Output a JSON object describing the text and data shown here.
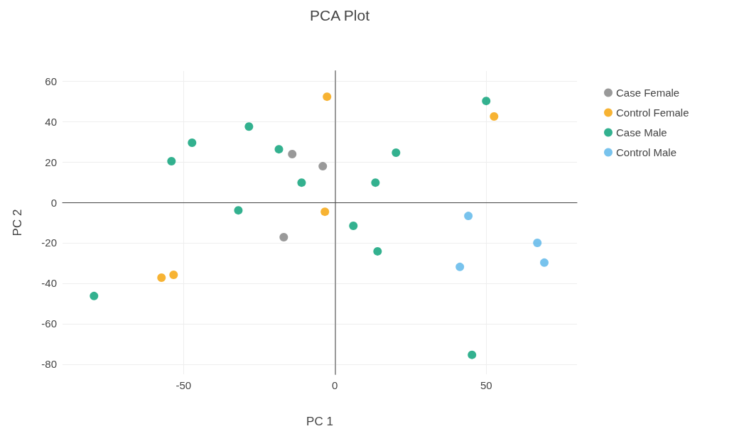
{
  "chart_data": {
    "type": "scatter",
    "title": "PCA Plot",
    "xlabel": "PC 1",
    "ylabel": "PC 2",
    "xlim": [
      -90,
      80
    ],
    "xticks": [
      -50,
      0,
      50
    ],
    "ylim": [
      -85,
      65
    ],
    "yticks": [
      -80,
      -60,
      -40,
      -20,
      0,
      20,
      40,
      60
    ],
    "grid": true,
    "legend": "top right",
    "marker": "circle",
    "series": [
      {
        "name": "Case Female",
        "color": "#7f7f7f",
        "x": [
          -14.1,
          -4.0,
          -16.9
        ],
        "values": [
          23.9,
          17.9,
          -17.2
        ]
      },
      {
        "name": "Control Female",
        "color": "#f5a000",
        "x": [
          -2.6,
          52.6,
          -3.3,
          -57.3,
          -53.3
        ],
        "values": [
          52.3,
          42.5,
          -4.6,
          -37.2,
          -35.8
        ]
      },
      {
        "name": "Case Male",
        "color": "#009e73",
        "x": [
          50,
          -28.4,
          -47.2,
          -54,
          -18.5,
          -11,
          20.2,
          13.4,
          -31.9,
          6.1,
          14.1,
          -79.6,
          45.3
        ],
        "values": [
          50.2,
          37.5,
          29.5,
          20.4,
          26.3,
          9.8,
          24.6,
          9.8,
          -3.9,
          -11.6,
          -24.2,
          -46.3,
          -75.4
        ]
      },
      {
        "name": "Control Male",
        "color": "#56b4e9",
        "x": [
          44.1,
          66.9,
          69.2,
          41.3
        ],
        "values": [
          -6.7,
          -20,
          -29.8,
          -31.9
        ]
      }
    ]
  }
}
